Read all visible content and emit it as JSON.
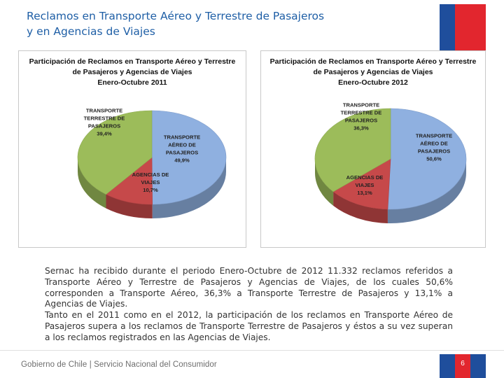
{
  "page": {
    "title_line1": "Reclamos en Transporte Aéreo y Terrestre de Pasajeros",
    "title_line2": "y en Agencias de Viajes",
    "body_p1": "Sernac ha recibido durante el periodo Enero-Octubre de 2012 11.332 reclamos referidos a Transporte Aéreo y Terrestre de Pasajeros y Agencias de Viajes, de los cuales  50,6% corresponden a Transporte Aéreo, 36,3% a Transporte Terrestre de Pasajeros y 13,1% a Agencias de Viajes.",
    "body_p2": "Tanto en el 2011 como en el 2012, la participación de los reclamos en Transporte Aéreo de Pasajeros supera a los reclamos de Transporte Terrestre de Pasajeros y éstos a su vez superan a los reclamos registrados en las Agencias de Viajes.",
    "footer_text": "Gobierno de Chile | Servicio Nacional del Consumidor",
    "page_number": "6"
  },
  "colors": {
    "title": "#1f5fa6",
    "aereo": "#8fb0e0",
    "terrestre": "#9cbc5a",
    "agencias": "#c6494a",
    "flag_blue": "#1f4e9c",
    "flag_red": "#e2262e"
  },
  "chart_data": [
    {
      "type": "pie",
      "title_lines": [
        "Participación de Reclamos en Transporte Aéreo y Terrestre",
        "de Pasajeros y Agencias de Viajes",
        "Enero-Octubre 2011"
      ],
      "slices": [
        {
          "label_lines": [
            "TRANSPORTE",
            "AÉREO DE",
            "PASAJEROS"
          ],
          "value_text": "49,9%",
          "value": 49.9,
          "color": "#8fb0e0"
        },
        {
          "label_lines": [
            "AGENCIAS DE",
            "VIAJES"
          ],
          "value_text": "10,7%",
          "value": 10.7,
          "color": "#c6494a"
        },
        {
          "label_lines": [
            "TRANSPORTE",
            "TERRESTRE DE",
            "PASAJEROS"
          ],
          "value_text": "39,4%",
          "value": 39.4,
          "color": "#9cbc5a"
        }
      ]
    },
    {
      "type": "pie",
      "title_lines": [
        "Participación de Reclamos en Transporte  Aéreo y Terrestre",
        "de Pasajeros y Agencias de Viajes",
        "Enero-Octubre 2012"
      ],
      "slices": [
        {
          "label_lines": [
            "TRANSPORTE",
            "AÉREO DE",
            "PASAJEROS"
          ],
          "value_text": "50,6%",
          "value": 50.6,
          "color": "#8fb0e0"
        },
        {
          "label_lines": [
            "AGENCIAS DE",
            "VIAJES"
          ],
          "value_text": "13,1%",
          "value": 13.1,
          "color": "#c6494a"
        },
        {
          "label_lines": [
            "TRANSPORTE",
            "TERRESTRE DE",
            "PASAJEROS"
          ],
          "value_text": "36,3%",
          "value": 36.3,
          "color": "#9cbc5a"
        }
      ]
    }
  ]
}
